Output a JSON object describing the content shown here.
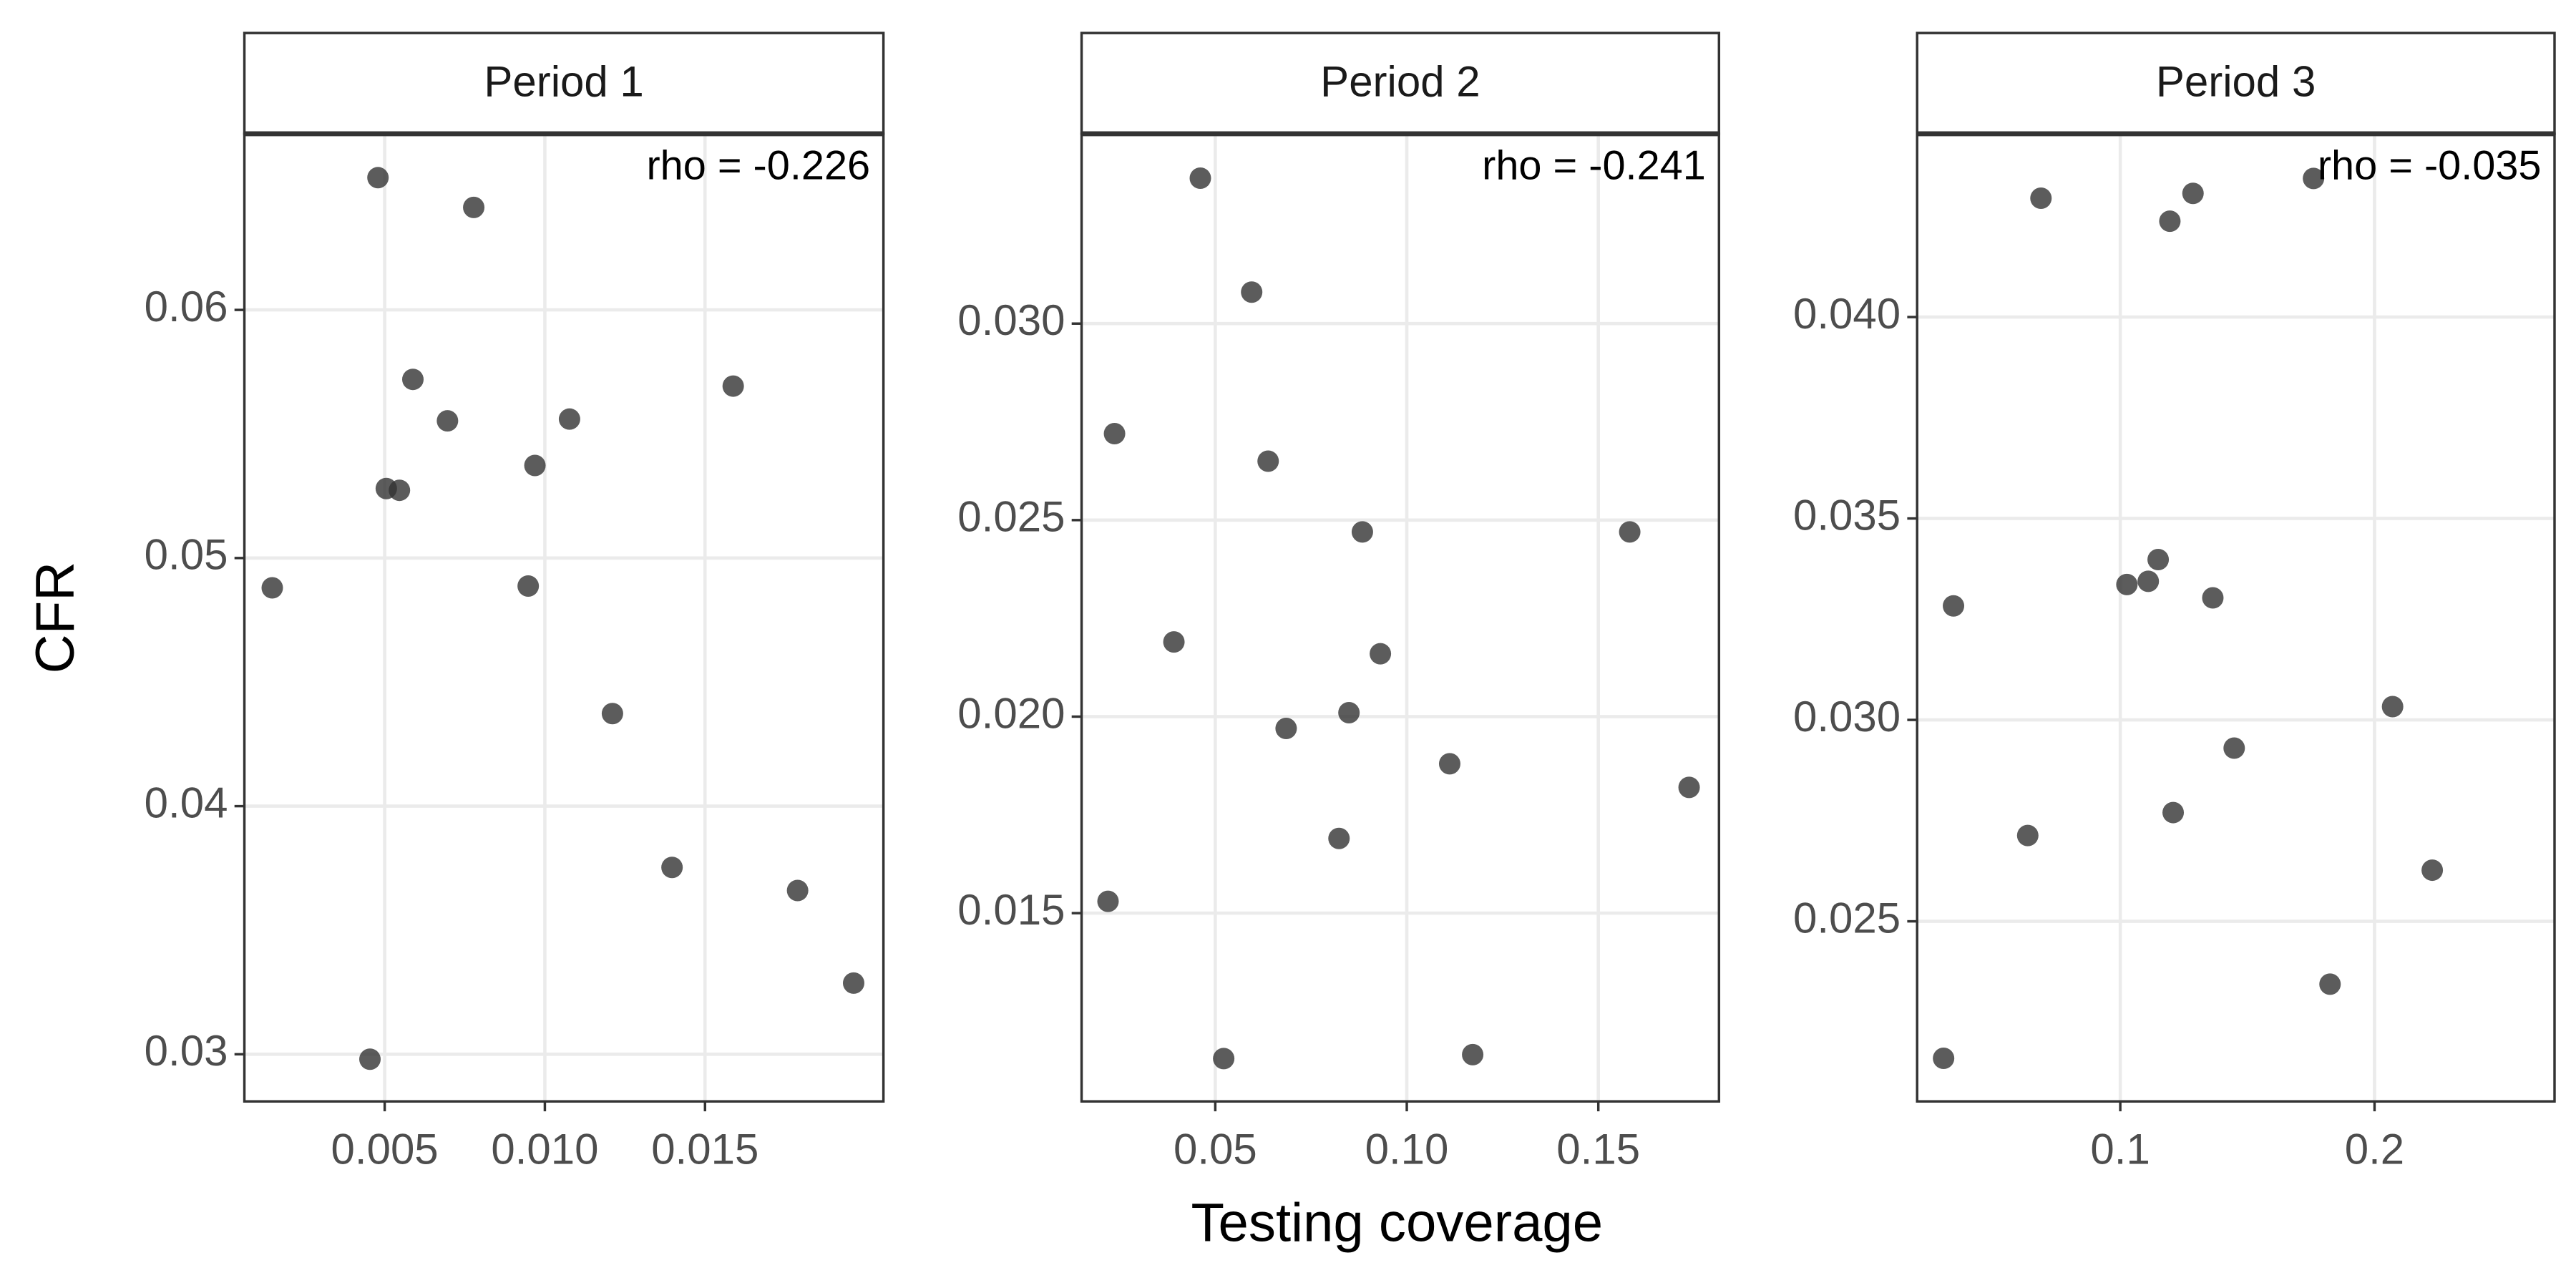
{
  "axis_labels": {
    "x": "Testing coverage",
    "y": "CFR"
  },
  "chart_data": [
    {
      "type": "scatter",
      "title": "Period 1",
      "annotation": "rho =  -0.226",
      "color": "#333333",
      "x": [
        0.00479,
        0.00778,
        0.00588,
        0.00696,
        0.01077,
        0.01588,
        0.00505,
        0.00546,
        0.00969,
        0.00149,
        0.00948,
        0.01211,
        0.01397,
        0.01789,
        0.01964,
        0.00454
      ],
      "y": [
        0.06533,
        0.06413,
        0.0572,
        0.05553,
        0.0556,
        0.05693,
        0.0528,
        0.05273,
        0.05373,
        0.0488,
        0.04887,
        0.04373,
        0.03753,
        0.0366,
        0.03287,
        0.0298
      ],
      "xlim": [
        0.00062,
        0.02057
      ],
      "ylim": [
        0.0281,
        0.0671
      ],
      "xticks": [
        0.005,
        {
          "value": 0.01,
          "label": "0.010"
        },
        0.015
      ],
      "yticks": [
        {
          "value": 0.03,
          "label": "0.03"
        },
        {
          "value": 0.04,
          "label": "0.04"
        },
        0.05,
        0.06
      ]
    },
    {
      "type": "scatter",
      "title": "Period 2",
      "annotation": "rho =  -0.241",
      "color": "#333333",
      "x": [
        0.0461,
        0.0595,
        0.0237,
        0.0638,
        0.0884,
        0.1582,
        0.0392,
        0.0931,
        0.0685,
        0.0849,
        0.1112,
        0.1737,
        0.0823,
        0.022,
        0.0522,
        0.1172
      ],
      "y": [
        0.0337,
        0.0308,
        0.0272,
        0.0265,
        0.0247,
        0.0247,
        0.0219,
        0.0216,
        0.0197,
        0.0201,
        0.0188,
        0.0182,
        0.0169,
        0.0153,
        0.0113,
        0.0114
      ],
      "xlim": [
        0.0151,
        0.1815
      ],
      "ylim": [
        0.01021,
        0.03483
      ],
      "xticks": [
        0.05,
        {
          "value": 0.1,
          "label": "0.10"
        },
        0.15
      ],
      "yticks": [
        0.015,
        {
          "value": 0.02,
          "label": "0.020"
        },
        0.025,
        {
          "value": 0.03,
          "label": "0.030"
        }
      ]
    },
    {
      "type": "scatter",
      "title": "Period 3",
      "annotation": "rho =  -0.035",
      "color": "#333333",
      "x": [
        0.0688,
        0.1286,
        0.1195,
        0.176,
        0.0344,
        0.1026,
        0.111,
        0.1149,
        0.1364,
        0.2071,
        0.1448,
        0.0636,
        0.1208,
        0.2227,
        0.1825,
        0.0305
      ],
      "y": [
        0.04295,
        0.04307,
        0.04238,
        0.04344,
        0.03283,
        0.03336,
        0.03344,
        0.03398,
        0.03303,
        0.03033,
        0.0293,
        0.02713,
        0.0277,
        0.02627,
        0.02344,
        0.0216
      ],
      "xlim": [
        0.0201,
        0.2708
      ],
      "ylim": [
        0.02053,
        0.04455
      ],
      "xticks": [
        0.1,
        0.2
      ],
      "yticks": [
        0.025,
        {
          "value": 0.03,
          "label": "0.030"
        },
        0.035,
        {
          "value": 0.04,
          "label": "0.040"
        }
      ]
    }
  ]
}
